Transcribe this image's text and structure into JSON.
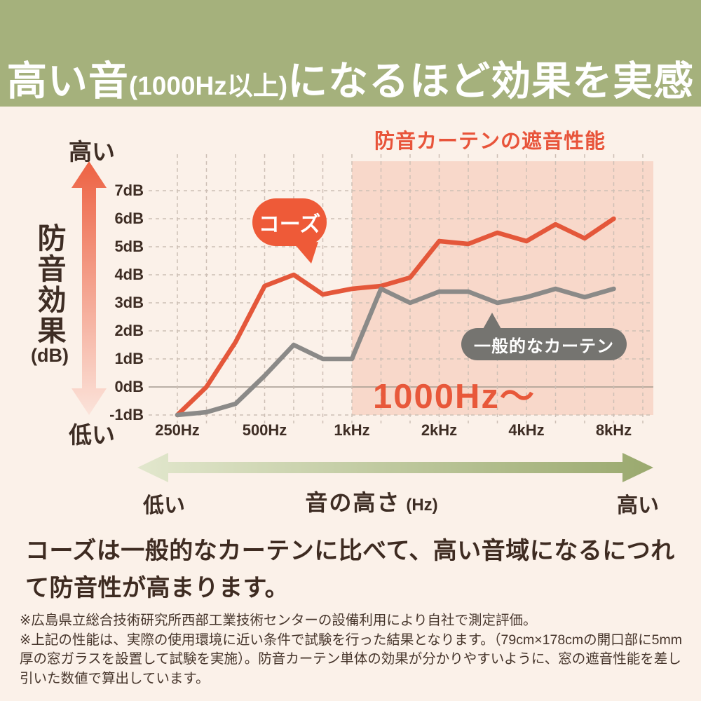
{
  "header": {
    "text_main_1": "高い音",
    "text_paren": "(1000Hz以上)",
    "text_main_2": "になるほど効果を実感"
  },
  "chart": {
    "title": "防音カーテンの遮音性能",
    "y_axis": {
      "high_label": "高い",
      "low_label": "低い",
      "title": "防音効果",
      "unit": "(dB)"
    },
    "bubbles": {
      "kohz": "コーズ",
      "general": "一般的なカーテン"
    },
    "highlight_label": "1000Hz〜"
  },
  "chart_data": {
    "type": "line",
    "title": "防音カーテンの遮音性能",
    "x_unit": "Hz",
    "x": [
      250,
      315,
      400,
      500,
      630,
      800,
      1000,
      1250,
      1600,
      2000,
      2500,
      3150,
      4000,
      5000,
      6300,
      8000
    ],
    "x_major_ticks": [
      {
        "index": 0,
        "label": "250Hz"
      },
      {
        "index": 3,
        "label": "500Hz"
      },
      {
        "index": 6,
        "label": "1kHz"
      },
      {
        "index": 9,
        "label": "2kHz"
      },
      {
        "index": 12,
        "label": "4kHz"
      },
      {
        "index": 15,
        "label": "8kHz"
      }
    ],
    "y_ticks": [
      "7dB",
      "6dB",
      "5dB",
      "4dB",
      "3dB",
      "2dB",
      "1dB",
      "0dB",
      "-1dB"
    ],
    "ylim": [
      -1,
      7
    ],
    "grid": "dashed",
    "series": [
      {
        "name": "コーズ",
        "color": "#e4573a",
        "values": [
          -1.0,
          0.0,
          1.6,
          3.6,
          4.0,
          3.3,
          3.5,
          3.6,
          3.9,
          5.2,
          5.1,
          5.5,
          5.2,
          5.8,
          5.3,
          6.0
        ]
      },
      {
        "name": "一般的なカーテン",
        "color": "#8b8a88",
        "values": [
          -1.0,
          -0.9,
          -0.6,
          0.4,
          1.5,
          1.0,
          1.0,
          3.5,
          3.0,
          3.4,
          3.4,
          3.0,
          3.2,
          3.5,
          3.2,
          3.5
        ]
      }
    ],
    "highlight_region": {
      "from_x": 1000,
      "label": "1000Hz〜",
      "color": "#f8d8ca"
    }
  },
  "x_legend": {
    "low": "低い",
    "title": "音の高さ",
    "unit": "(Hz)",
    "high": "高い"
  },
  "description": "コーズは一般的なカーテンに比べて、高い音域になるにつれて防音性が高まります。",
  "footnotes": [
    "※広島県立総合技術研究所西部工業技術センターの設備利用により自社で測定評価。",
    "※上記の性能は、実際の使用環境に近い条件で試験を行った結果となります。（79cm×178cmの開口部に5mm厚の窓ガラスを設置して試験を実施）。防音カーテン単体の効果が分かりやすいように、窓の遮音性能を差し引いた数値で算出しています。"
  ],
  "colors": {
    "header_green": "#a5b17c",
    "accent_orange": "#e8573a",
    "highlight_pink": "#f8d8ca",
    "line_gray": "#8b8a88",
    "text_dark": "#3e2d24",
    "page_bg": "#fbf1e9"
  }
}
